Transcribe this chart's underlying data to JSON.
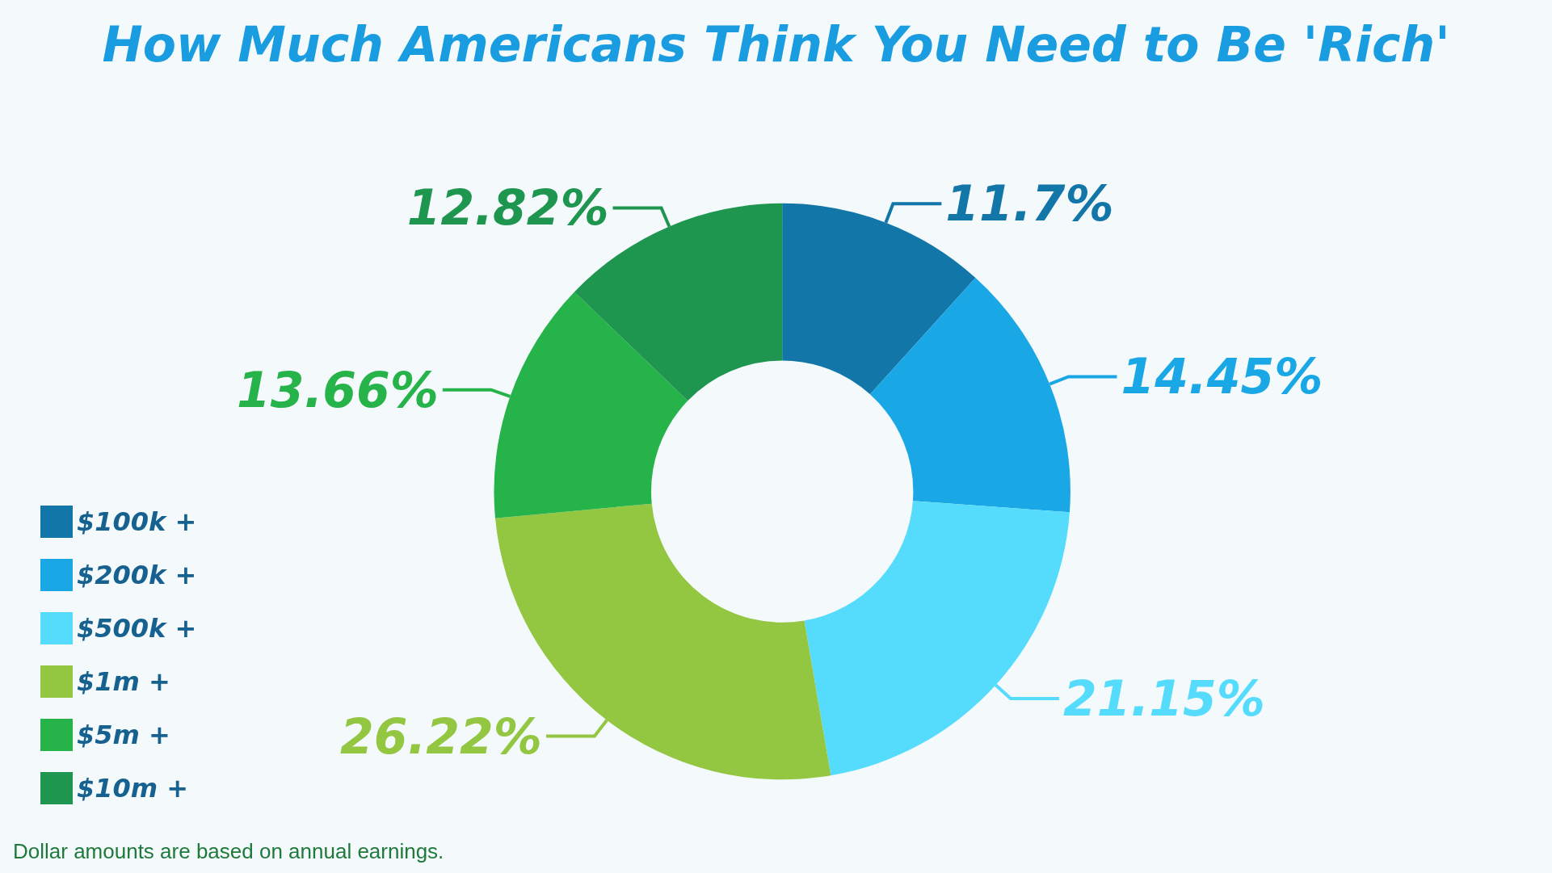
{
  "chart_data": {
    "type": "donut",
    "title": "How Much Americans Think You Need to Be 'Rich'",
    "categories": [
      "$100k +",
      "$200k +",
      "$500k +",
      "$1m +",
      "$5m +",
      "$10m +"
    ],
    "values": [
      11.7,
      14.45,
      21.15,
      26.22,
      13.66,
      12.82
    ],
    "value_labels": [
      "11.7%",
      "14.45%",
      "21.15%",
      "26.22%",
      "13.66%",
      "12.82%"
    ],
    "colors": [
      "#1276a8",
      "#1aa7e6",
      "#55dcfc",
      "#93c641",
      "#26b34a",
      "#1f9650"
    ],
    "legend": "bottom left",
    "annotations": [
      "Dollar amounts are based on annual earnings."
    ]
  }
}
